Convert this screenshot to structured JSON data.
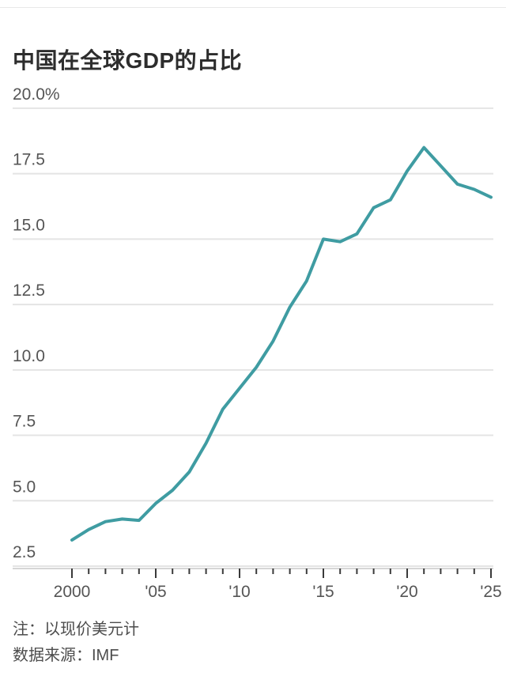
{
  "page": {
    "title": "中国在全球GDP的占比",
    "note_line1": "注：以现价美元计",
    "note_line2": "数据来源：IMF"
  },
  "chart_data": {
    "type": "line",
    "title": "中国在全球GDP的占比",
    "series": [
      {
        "name": "中国在全球GDP的占比",
        "x": [
          2000,
          2001,
          2002,
          2003,
          2004,
          2005,
          2006,
          2007,
          2008,
          2009,
          2010,
          2011,
          2012,
          2013,
          2014,
          2015,
          2016,
          2017,
          2018,
          2019,
          2020,
          2021,
          2022,
          2023,
          2024,
          2025
        ],
        "values": [
          3.5,
          3.9,
          4.2,
          4.3,
          4.25,
          4.9,
          5.4,
          6.1,
          7.2,
          8.5,
          9.3,
          10.1,
          11.1,
          12.4,
          13.4,
          15.0,
          14.9,
          15.2,
          16.2,
          16.5,
          17.6,
          18.5,
          17.8,
          17.1,
          16.9,
          16.6
        ]
      }
    ],
    "xlabel": "",
    "ylabel": "",
    "unit": "%",
    "xlim": [
      2000,
      2025
    ],
    "ylim": [
      2.5,
      20.0
    ],
    "grid": "horizontal",
    "legend_position": "none",
    "y_ticks": [
      {
        "label": "20.0%",
        "value": 20.0
      },
      {
        "label": "17.5",
        "value": 17.5
      },
      {
        "label": "15.0",
        "value": 15.0
      },
      {
        "label": "12.5",
        "value": 12.5
      },
      {
        "label": "10.0",
        "value": 10.0
      },
      {
        "label": "7.5",
        "value": 7.5
      },
      {
        "label": "5.0",
        "value": 5.0
      },
      {
        "label": "2.5",
        "value": 2.5
      }
    ],
    "x_major_ticks": [
      {
        "label": "2000",
        "year": 2000
      },
      {
        "label": "'05",
        "year": 2005
      },
      {
        "label": "'10",
        "year": 2010
      },
      {
        "label": "'15",
        "year": 2015
      },
      {
        "label": "'20",
        "year": 2020
      },
      {
        "label": "'25",
        "year": 2025
      }
    ],
    "x_minor_tick_every": 1,
    "colors": {
      "line": "#3f9ca2",
      "grid": "#e4e4e4",
      "axis": "#d6d6d6",
      "tick": "#3a3a3a",
      "tick_label": "#555555",
      "title": "#2d2d2d",
      "note": "#4c4c4c"
    },
    "notes": [
      "注：以现价美元计",
      "数据来源：IMF"
    ]
  }
}
